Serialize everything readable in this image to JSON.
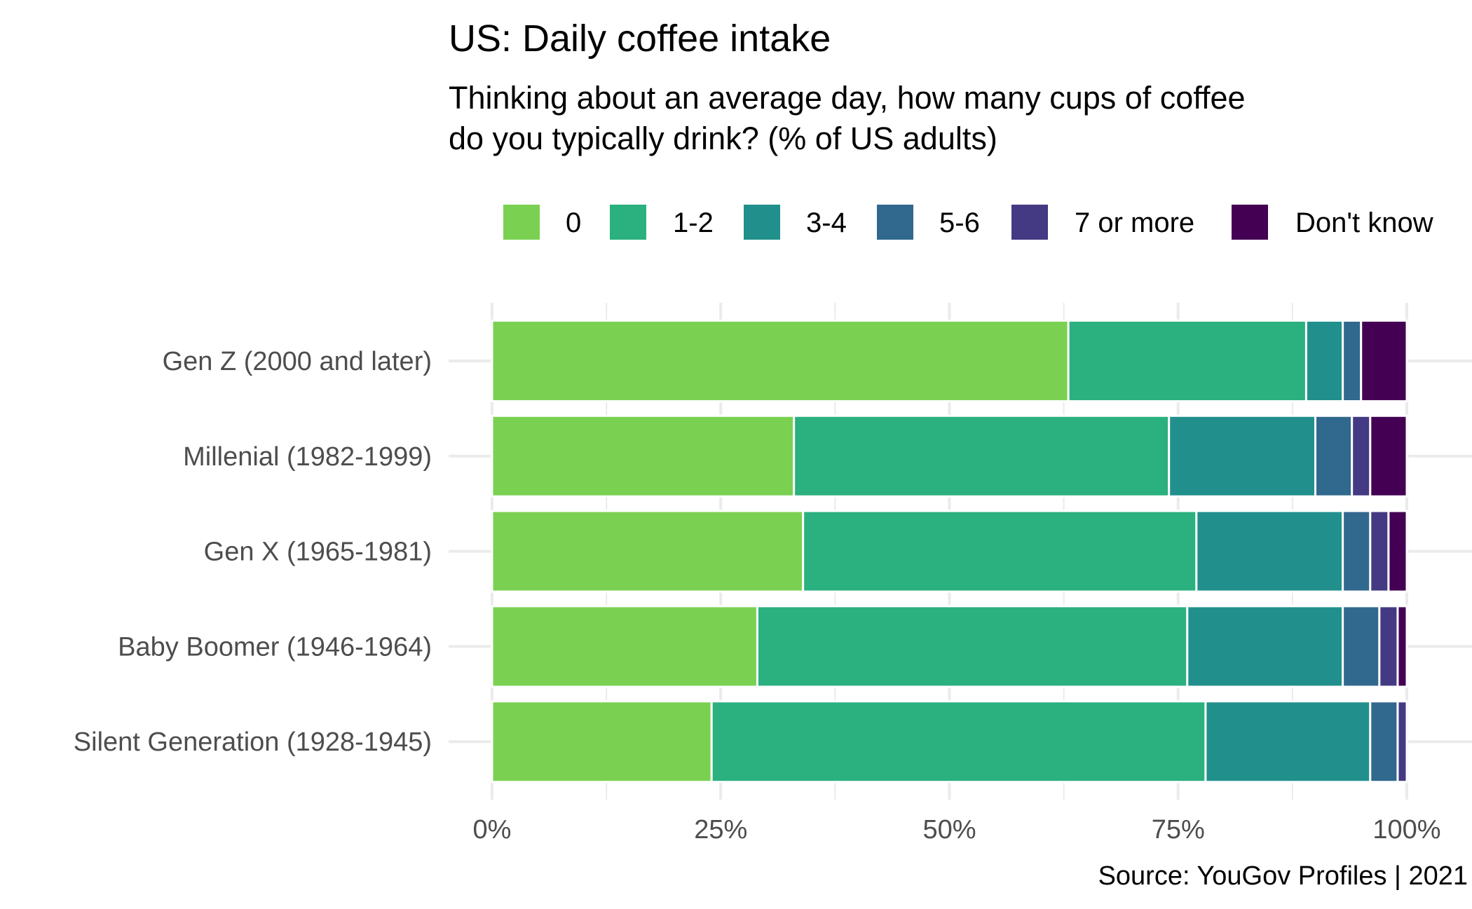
{
  "chart_data": {
    "type": "bar",
    "orientation": "horizontal",
    "stacked": true,
    "title": "US: Daily coffee intake",
    "subtitle_lines": [
      "Thinking about an average day, how many cups of coffee",
      "do you typically drink? (% of US adults)"
    ],
    "caption": "Source: YouGov Profiles | 2021",
    "xlabel": "",
    "ylabel": "",
    "xlim": [
      0,
      100
    ],
    "x_ticks": [
      0,
      25,
      50,
      75,
      100
    ],
    "x_tick_labels": [
      "0%",
      "25%",
      "50%",
      "75%",
      "100%"
    ],
    "grid": true,
    "legend_position": "top",
    "categories": [
      "Gen Z (2000 and later)",
      "Millenial (1982-1999)",
      "Gen X (1965-1981)",
      "Baby Boomer (1946-1964)",
      "Silent Generation (1928-1945)"
    ],
    "series": [
      {
        "name": "0",
        "color": "#7AD151",
        "values": [
          63,
          33,
          34,
          29,
          24
        ]
      },
      {
        "name": "1-2",
        "color": "#2BB07F",
        "values": [
          26,
          41,
          43,
          47,
          54
        ]
      },
      {
        "name": "3-4",
        "color": "#21908C",
        "values": [
          4,
          16,
          16,
          17,
          18
        ]
      },
      {
        "name": "5-6",
        "color": "#31688E",
        "values": [
          2,
          4,
          3,
          4,
          3
        ]
      },
      {
        "name": "7 or more",
        "color": "#443A83",
        "values": [
          0,
          2,
          2,
          2,
          1
        ]
      },
      {
        "name": "Don't know",
        "color": "#440154",
        "values": [
          5,
          4,
          2,
          1,
          0
        ]
      }
    ]
  }
}
